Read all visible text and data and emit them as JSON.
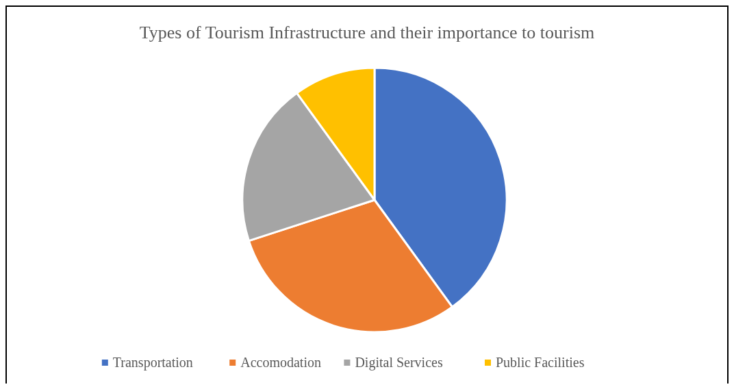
{
  "chart_data": {
    "type": "pie",
    "title": "Types of Tourism Infrastructure and their importance to tourism",
    "categories": [
      "Transportation",
      "Accomodation",
      "Digital Services",
      "Public Facilities"
    ],
    "values": [
      40,
      30,
      20,
      10
    ],
    "colors": [
      "#4472c4",
      "#ed7d31",
      "#a5a5a5",
      "#ffc000"
    ],
    "legend": "bottom"
  }
}
